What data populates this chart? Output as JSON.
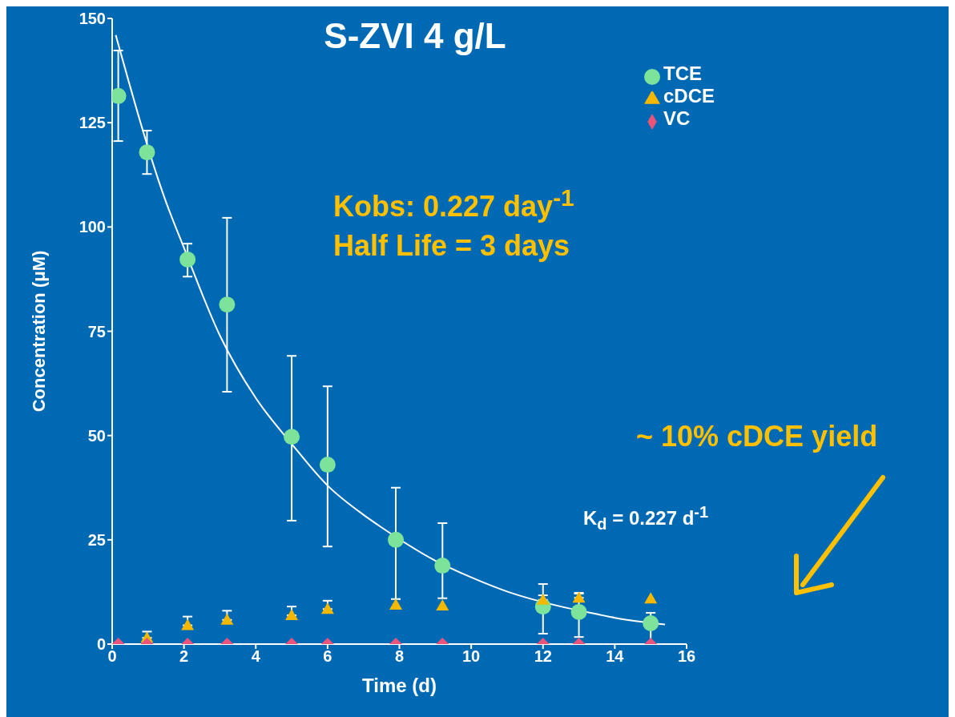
{
  "chart_data": {
    "type": "scatter",
    "title": "S-ZVI 4 g/L",
    "xlabel": "Time (d)",
    "ylabel": "Concentration (μM)",
    "xlim": [
      0,
      16
    ],
    "xticks": [
      0,
      2,
      4,
      6,
      8,
      10,
      12,
      14,
      16
    ],
    "ylim": [
      0,
      150
    ],
    "yticks": [
      0,
      25,
      50,
      75,
      100,
      125,
      150
    ],
    "x": [
      0.17,
      0.97,
      2.1,
      3.2,
      5.0,
      6.0,
      7.9,
      9.2,
      12.0,
      13.0,
      15.0
    ],
    "series": [
      {
        "name": "TCE",
        "color": "#7de39a",
        "marker": "circle",
        "values": [
          131.4,
          117.9,
          92.2,
          81.4,
          49.7,
          43,
          25,
          18.8,
          9,
          7.7,
          5
        ],
        "errors": [
          [
            120.6,
            142.3
          ],
          [
            112.7,
            123.1
          ],
          [
            88.1,
            96
          ],
          [
            60.5,
            102.2
          ],
          [
            29.6,
            69.1
          ],
          [
            23.4,
            61.8
          ],
          [
            10.8,
            37.5
          ],
          [
            11,
            29
          ],
          [
            2.5,
            14.4
          ],
          [
            1.7,
            12.1
          ],
          [
            0,
            7.5
          ]
        ]
      },
      {
        "name": "cDCE",
        "color": "#f5b800",
        "marker": "triangle",
        "values": [
          null,
          1.5,
          4.5,
          5.8,
          6.9,
          8.4,
          9.4,
          9.2,
          10.6,
          11.1,
          10.9
        ],
        "errors": [
          null,
          [
            1.5,
            3
          ],
          [
            4.5,
            6.6
          ],
          [
            5.8,
            8
          ],
          [
            6.9,
            9
          ],
          [
            8.4,
            10.4
          ],
          null,
          null,
          [
            10.6,
            11.7
          ],
          [
            11.1,
            12.3
          ],
          null
        ]
      },
      {
        "name": "VC",
        "color": "#e8547a",
        "marker": "diamond",
        "values": [
          0,
          0,
          0,
          0,
          0,
          0,
          0,
          0,
          0,
          0,
          0
        ]
      },
      {
        "type": "line",
        "color": "#ffffff",
        "x": [
          0.1,
          1.5,
          2,
          3,
          4,
          5,
          6,
          7,
          7.5,
          9,
          10,
          11,
          12.5,
          13.5,
          14,
          15.4
        ],
        "values": [
          146,
          106,
          95,
          74,
          59,
          48,
          38,
          31,
          28,
          20,
          16,
          12.6,
          9,
          7.2,
          6.3,
          4.7
        ]
      }
    ],
    "legend": "top right",
    "annotations": [
      "Kobs: 0.227 day$^{-1}$",
      "Half Life = 3 days",
      "~ 10% cDCE yield",
      "K$_{d}$ = 0.227 d$^{-1}$"
    ]
  }
}
